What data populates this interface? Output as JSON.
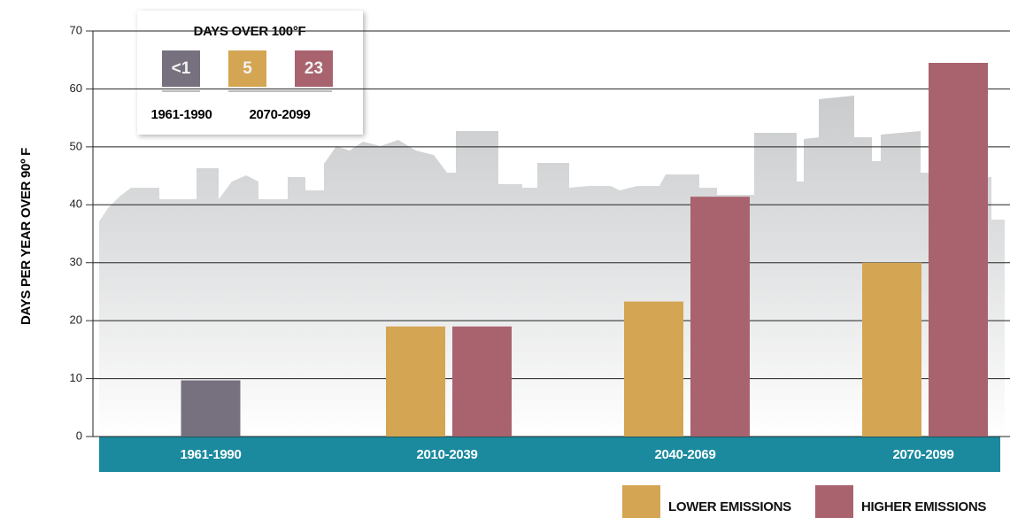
{
  "chart_data": {
    "type": "bar",
    "y_label": "DAYS PER YEAR OVER 90º F",
    "categories": [
      "1961-1990",
      "2010-2039",
      "2040-2069",
      "2070-2099"
    ],
    "observed": {
      "color": "#77717f",
      "values": [
        9.7,
        null,
        null,
        null
      ]
    },
    "series": [
      {
        "name": "LOWER EMISSIONS",
        "color": "#d4a553",
        "values": [
          null,
          19,
          23.3,
          30
        ]
      },
      {
        "name": "HIGHER EMISSIONS",
        "color": "#a9636e",
        "values": [
          null,
          19,
          41.4,
          64.5
        ]
      }
    ],
    "ylim": [
      0,
      70
    ],
    "yticks": [
      0,
      10,
      20,
      30,
      40,
      50,
      60,
      70
    ],
    "grid": true,
    "band_color": "#1b8a9e",
    "inset": {
      "title": "DAYS OVER 100°F",
      "items": [
        {
          "label": "<1",
          "color": "#77717f"
        },
        {
          "label": "5",
          "color": "#d4a553"
        },
        {
          "label": "23",
          "color": "#a9636e"
        }
      ],
      "periods": [
        "1961-1990",
        "2070-2099"
      ]
    }
  }
}
